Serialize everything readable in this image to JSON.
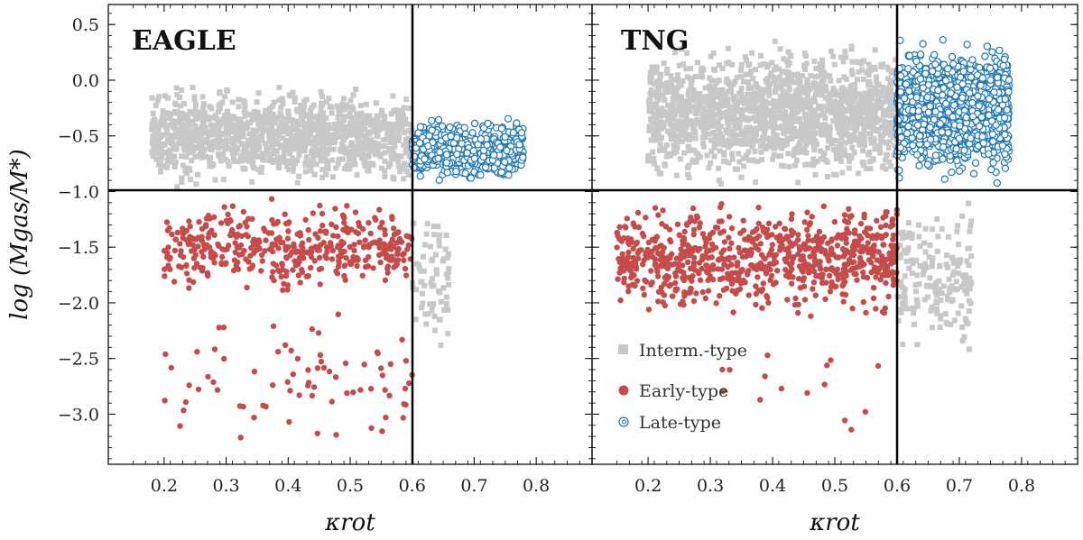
{
  "chart_data": [
    {
      "type": "scatter",
      "title": "EAGLE",
      "xlabel": "κrot",
      "ylabel": "log (Mgas/M*)",
      "xlim": [
        0.11,
        0.89
      ],
      "ylim": [
        -3.45,
        0.68
      ],
      "xticks": [
        0.2,
        0.3,
        0.4,
        0.5,
        0.6,
        0.7,
        0.8
      ],
      "yticks": [
        0.5,
        0.0,
        -0.5,
        -1.0,
        -1.5,
        -2.0,
        -2.5,
        -3.0
      ],
      "xtick_labels": [
        "0.2",
        "0.3",
        "0.4",
        "0.5",
        "0.6",
        "0.7",
        "0.8"
      ],
      "ytick_labels": [
        "0.5",
        "0.0",
        "−0.5",
        "−1.0",
        "−1.5",
        "−2.0",
        "−2.5",
        "−3.0"
      ],
      "thresholds": {
        "kappa_rot": 0.6,
        "log_gas_fraction": -1.0
      },
      "series": [
        {
          "name": "Interm.-type",
          "marker": "square",
          "color": "#c8c8c8",
          "regions": [
            {
              "x": [
                0.18,
                0.6
              ],
              "y": [
                -1.0,
                0.0
              ],
              "n": 1200
            },
            {
              "x": [
                0.6,
                0.66
              ],
              "y": [
                -2.5,
                -1.0
              ],
              "n": 70
            }
          ]
        },
        {
          "name": "Early-type",
          "marker": "circle",
          "color": "#c64b4b",
          "regions": [
            {
              "x": [
                0.2,
                0.6
              ],
              "y": [
                -2.0,
                -1.0
              ],
              "n": 420
            },
            {
              "x": [
                0.2,
                0.6
              ],
              "y": [
                -3.45,
                -2.0
              ],
              "n": 75
            }
          ]
        },
        {
          "name": "Late-type",
          "marker": "spiral",
          "color": "#1f77b4",
          "regions": [
            {
              "x": [
                0.6,
                0.78
              ],
              "y": [
                -0.95,
                -0.3
              ],
              "n": 650
            }
          ]
        }
      ]
    },
    {
      "type": "scatter",
      "title": "TNG",
      "xlabel": "κrot",
      "ylabel": "",
      "xlim": [
        0.11,
        0.89
      ],
      "ylim": [
        -3.45,
        0.68
      ],
      "xticks": [
        0.2,
        0.3,
        0.4,
        0.5,
        0.6,
        0.7,
        0.8
      ],
      "yticks": [
        0.5,
        0.0,
        -0.5,
        -1.0,
        -1.5,
        -2.0,
        -2.5,
        -3.0
      ],
      "xtick_labels": [
        "0.2",
        "0.3",
        "0.4",
        "0.5",
        "0.6",
        "0.7",
        "0.8"
      ],
      "ytick_labels": [],
      "thresholds": {
        "kappa_rot": 0.6,
        "log_gas_fraction": -1.0
      },
      "series": [
        {
          "name": "Interm.-type",
          "marker": "square",
          "color": "#c8c8c8",
          "regions": [
            {
              "x": [
                0.2,
                0.6
              ],
              "y": [
                -1.0,
                0.4
              ],
              "n": 1600
            },
            {
              "x": [
                0.6,
                0.72
              ],
              "y": [
                -2.6,
                -1.0
              ],
              "n": 180
            }
          ]
        },
        {
          "name": "Early-type",
          "marker": "circle",
          "color": "#c64b4b",
          "regions": [
            {
              "x": [
                0.15,
                0.6
              ],
              "y": [
                -2.2,
                -1.0
              ],
              "n": 780
            },
            {
              "x": [
                0.3,
                0.57
              ],
              "y": [
                -3.35,
                -2.2
              ],
              "n": 15
            }
          ]
        },
        {
          "name": "Late-type",
          "marker": "spiral",
          "color": "#1f77b4",
          "regions": [
            {
              "x": [
                0.6,
                0.78
              ],
              "y": [
                -0.95,
                0.4
              ],
              "n": 1500
            }
          ]
        }
      ]
    }
  ],
  "legend": {
    "position": "lower-left of TNG panel",
    "items": [
      {
        "label": "Interm.-type",
        "marker": "square",
        "color": "#c8c8c8"
      },
      {
        "label": "Early-type",
        "marker": "circle",
        "color": "#c64b4b"
      },
      {
        "label": "Late-type",
        "marker": "spiral",
        "color": "#1f77b4"
      }
    ]
  }
}
